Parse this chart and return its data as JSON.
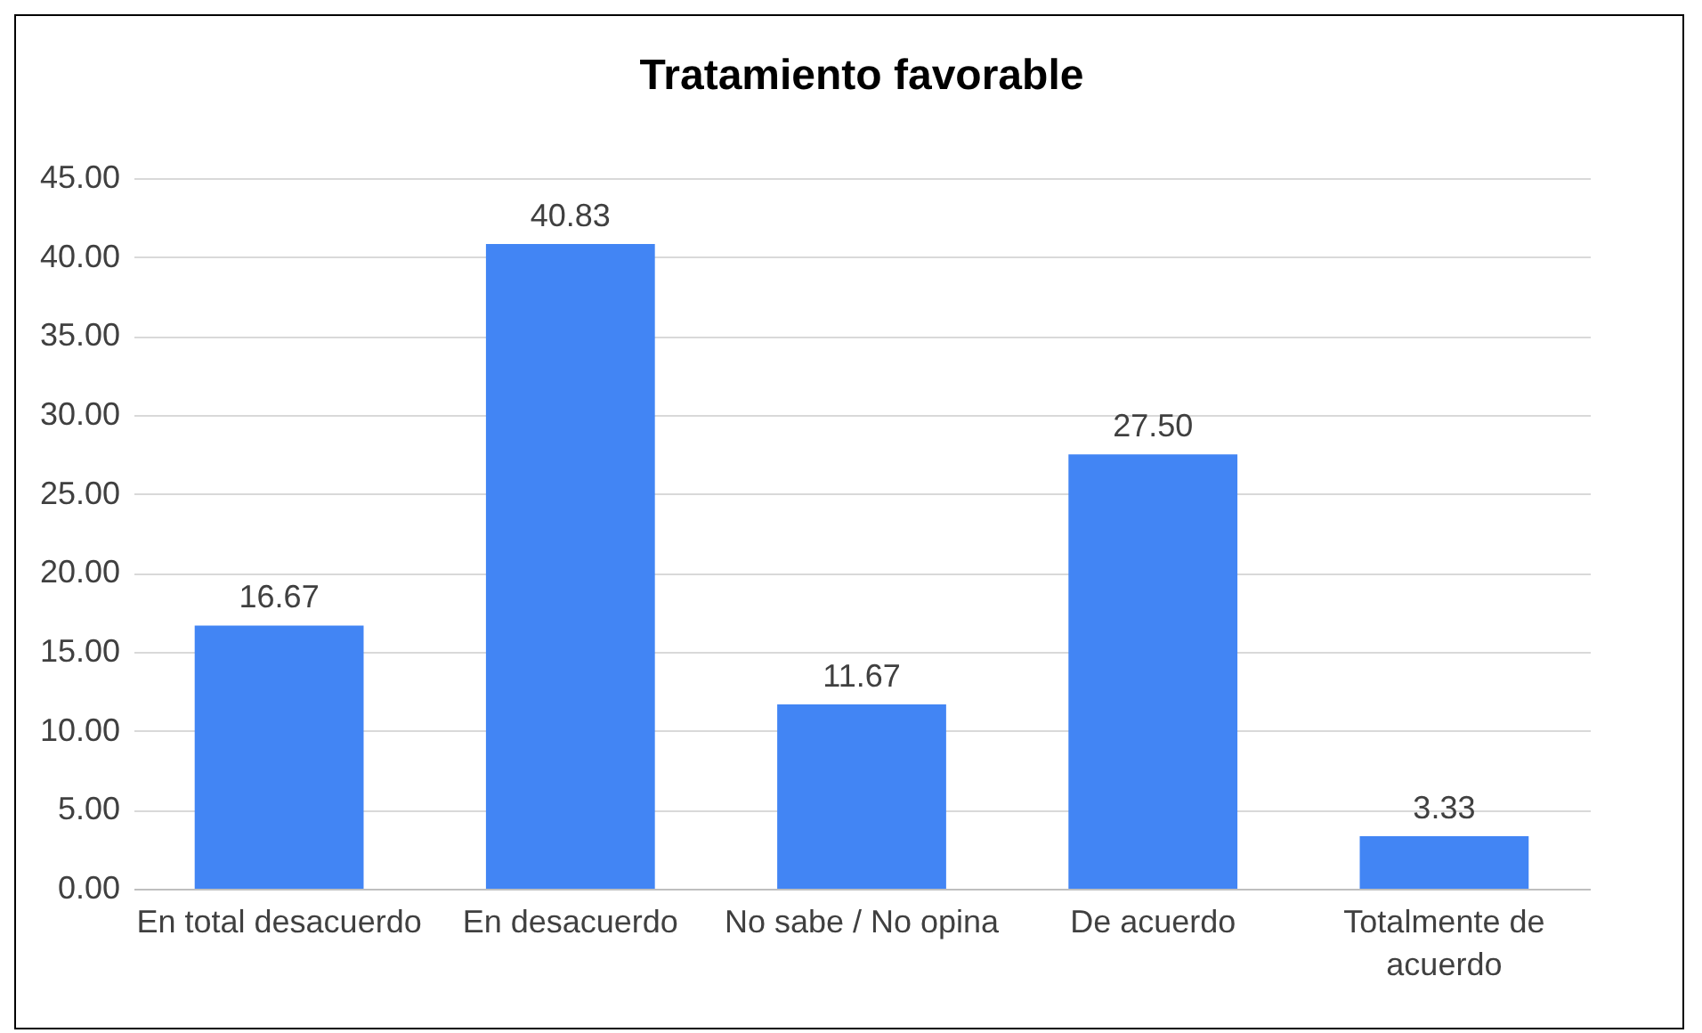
{
  "chart_data": {
    "type": "bar",
    "title": "Tratamiento favorable",
    "categories": [
      "En total desacuerdo",
      "En desacuerdo",
      "No sabe / No opina",
      "De acuerdo",
      "Totalmente de acuerdo"
    ],
    "values": [
      16.67,
      40.83,
      11.67,
      27.5,
      3.33
    ],
    "value_labels": [
      "16.67",
      "40.83",
      "11.67",
      "27.50",
      "3.33"
    ],
    "color": "#4285f4",
    "ylim": [
      0,
      45
    ],
    "yticks": [
      {
        "value": 0,
        "label": "0.00"
      },
      {
        "value": 5,
        "label": "5.00"
      },
      {
        "value": 10,
        "label": "10.00"
      },
      {
        "value": 15,
        "label": "15.00"
      },
      {
        "value": 20,
        "label": "20.00"
      },
      {
        "value": 25,
        "label": "25.00"
      },
      {
        "value": 30,
        "label": "30.00"
      },
      {
        "value": 35,
        "label": "35.00"
      },
      {
        "value": 40,
        "label": "40.00"
      },
      {
        "value": 45,
        "label": "45.00"
      }
    ],
    "grid": "y"
  }
}
